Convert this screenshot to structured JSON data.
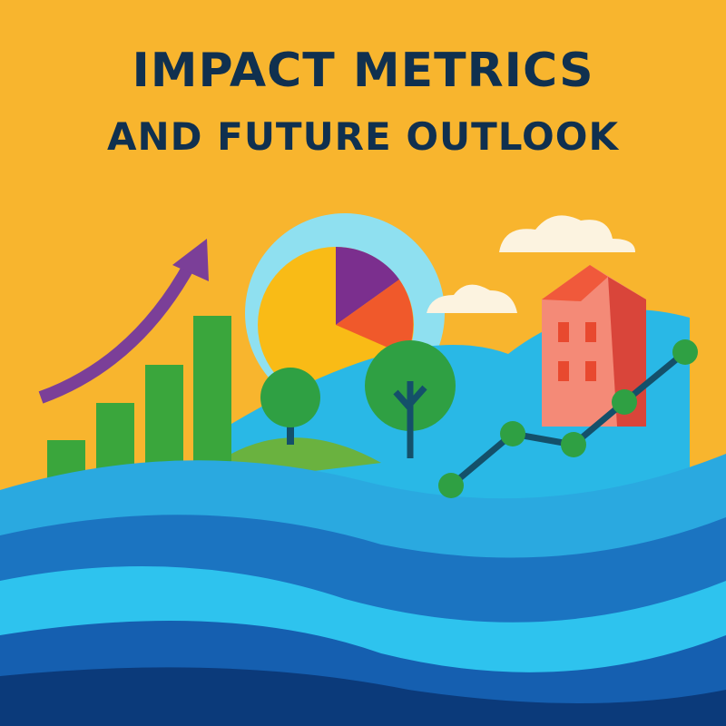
{
  "title": {
    "line1": "IMPACT METRICS",
    "line2": "AND FUTURE OUTLOOK"
  },
  "colors": {
    "background": "#f8b52e",
    "title": "#10304f",
    "bars": "#3aa63c",
    "arrow": "#7b3f98",
    "pie_main": "#f9bb16",
    "pie_purple": "#7b2f8e",
    "pie_orange": "#f0592b",
    "building": "#f48a77",
    "wave_dark": "#0b3a7a",
    "wave_light": "#2ec3ee"
  },
  "icons": [
    "growth-arrow-icon",
    "bar-chart-icon",
    "pie-chart-icon",
    "tree-icon",
    "building-icon",
    "cloud-icon",
    "line-chart-icon"
  ]
}
